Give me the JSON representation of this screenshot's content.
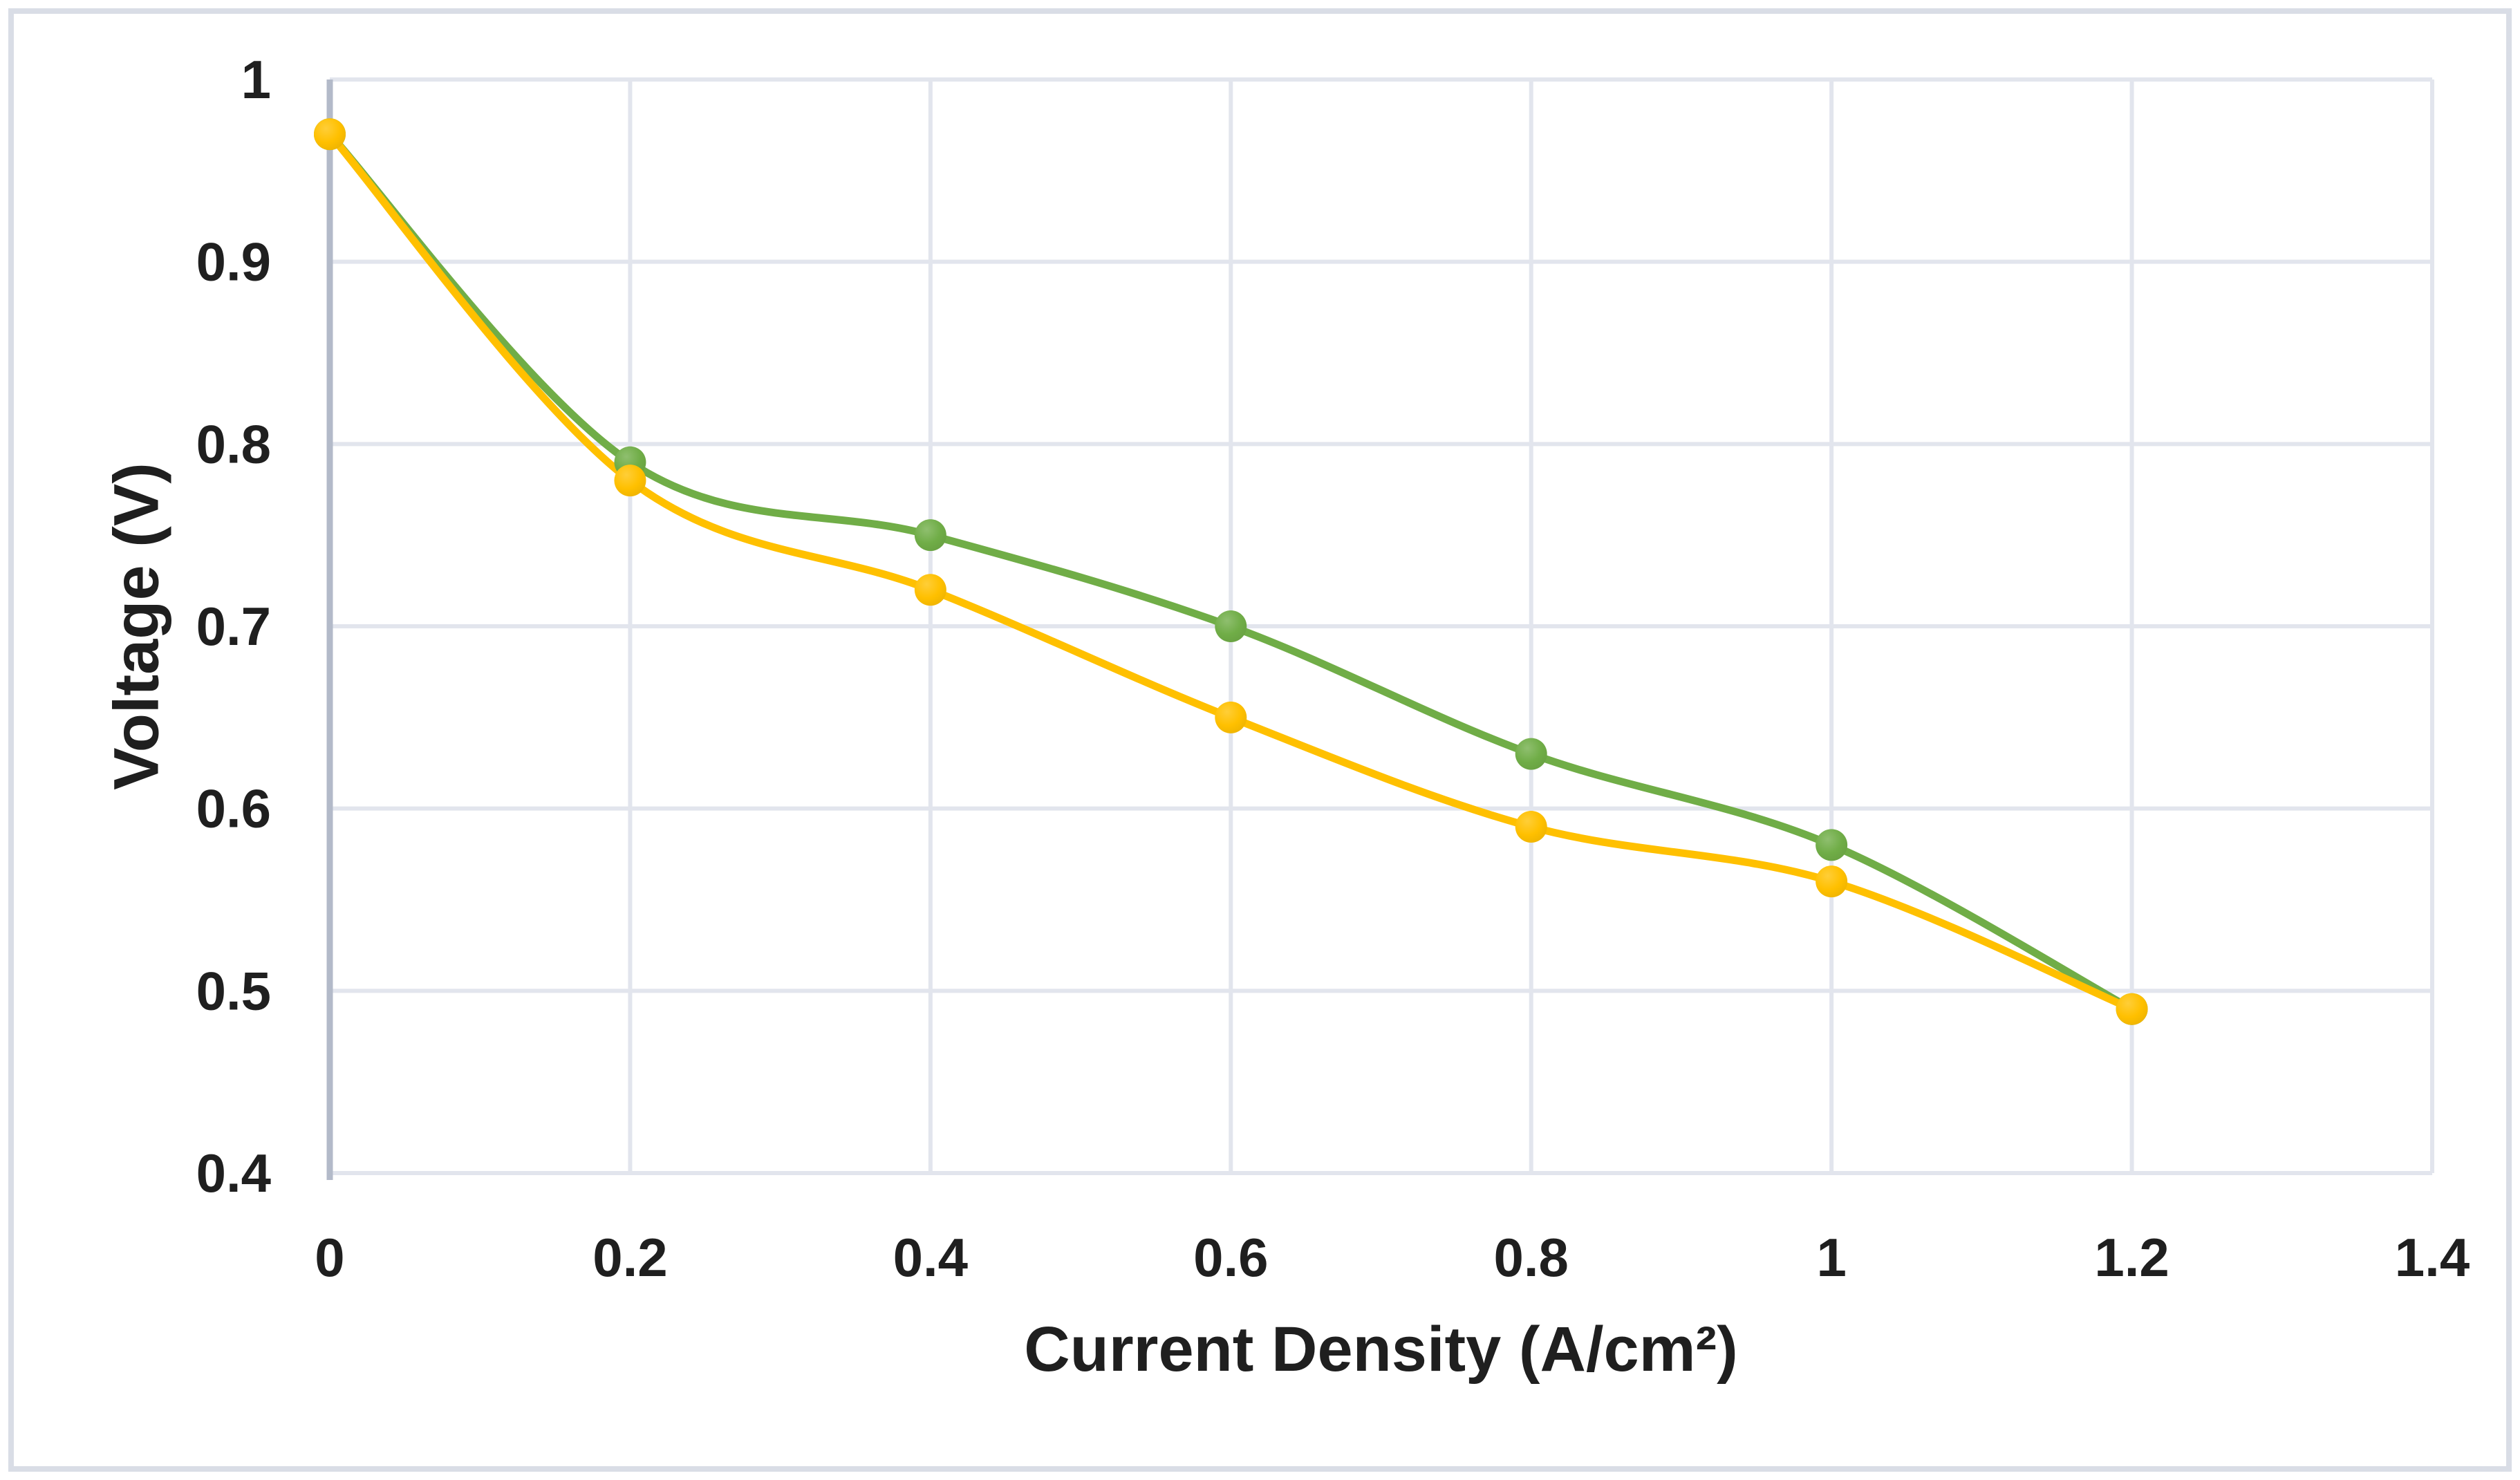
{
  "chart_data": {
    "type": "line",
    "title": "",
    "xlabel": "Current Density (A/cm²)",
    "ylabel": "Voltage (V)",
    "x": [
      0,
      0.2,
      0.4,
      0.6,
      0.8,
      1,
      1.2
    ],
    "series": [
      {
        "name": "green-series",
        "color": "#70AD47",
        "values": [
          0.97,
          0.79,
          0.75,
          0.7,
          0.63,
          0.58,
          0.49
        ]
      },
      {
        "name": "yellow-series",
        "color": "#FFC000",
        "values": [
          0.97,
          0.78,
          0.72,
          0.65,
          0.59,
          0.56,
          0.49
        ]
      }
    ],
    "xlim": [
      0,
      1.4
    ],
    "ylim": [
      0.4,
      1
    ],
    "x_ticks": [
      0,
      0.2,
      0.4,
      0.6,
      0.8,
      1,
      1.2,
      1.4
    ],
    "x_tick_labels": [
      "0",
      "0.2",
      "0.4",
      "0.6",
      "0.8",
      "1",
      "1.2",
      "1.4"
    ],
    "y_ticks": [
      0.4,
      0.5,
      0.6,
      0.7,
      0.8,
      0.9,
      1
    ],
    "y_tick_labels": [
      "0.4",
      "0.5",
      "0.6",
      "0.7",
      "0.8",
      "0.9",
      "1"
    ],
    "grid": true,
    "legend": false,
    "smooth_lines": true,
    "marker": "circle"
  },
  "style": {
    "background": "#FFFFFF",
    "frame_border": "#D9DDE6",
    "gridline": "#E2E5ED",
    "axis_line": "#B3BAC9",
    "tick_text": "#1F1F1F"
  }
}
